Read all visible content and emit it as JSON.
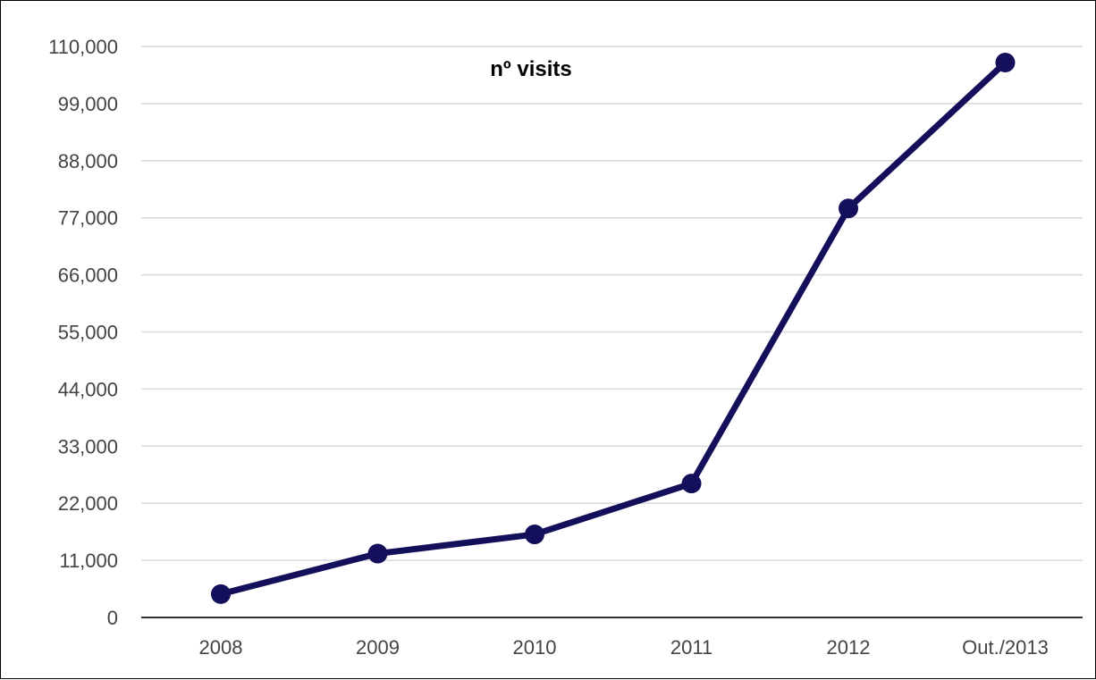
{
  "chart_data": {
    "type": "line",
    "title": "nº visits",
    "xlabel": "",
    "ylabel": "",
    "categories": [
      "2008",
      "2009",
      "2010",
      "2011",
      "2012",
      "Out./2013"
    ],
    "series": [
      {
        "values": [
          4500,
          12300,
          16000,
          25800,
          78800,
          106900
        ]
      }
    ],
    "ylim": [
      0,
      110000
    ],
    "yticks": [
      0,
      11000,
      22000,
      33000,
      44000,
      55000,
      66000,
      77000,
      88000,
      99000,
      110000
    ],
    "ytick_labels": [
      "0",
      "11,000",
      "22,000",
      "33,000",
      "44,000",
      "55,000",
      "66,000",
      "77,000",
      "88,000",
      "99,000",
      "110,000"
    ],
    "grid": true,
    "legend": "none",
    "colors": {
      "line": "#140f5a",
      "grid": "#d9d9d9",
      "axis": "#333333",
      "tick_text": "#444444"
    }
  }
}
